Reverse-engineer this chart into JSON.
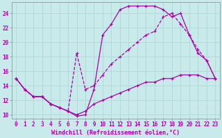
{
  "xlabel": "Windchill (Refroidissement éolien,°C)",
  "xlim": [
    -0.5,
    23.5
  ],
  "ylim": [
    9.5,
    25.5
  ],
  "xticks": [
    0,
    1,
    2,
    3,
    4,
    5,
    6,
    7,
    8,
    9,
    10,
    11,
    12,
    13,
    14,
    15,
    16,
    17,
    18,
    19,
    20,
    21,
    22,
    23
  ],
  "yticks": [
    10,
    12,
    14,
    16,
    18,
    20,
    22,
    24
  ],
  "background_color": "#c8eaea",
  "line_color": "#aa00aa",
  "grid_color": "#b0d8d8",
  "line1_x": [
    0,
    1,
    2,
    3,
    4,
    5,
    6,
    7,
    8,
    9,
    10,
    11,
    12,
    13,
    14,
    15,
    16,
    17,
    18,
    19,
    20,
    21,
    22,
    23
  ],
  "line1_y": [
    15,
    13.5,
    12.5,
    12.5,
    11.5,
    11.0,
    10.5,
    9.8,
    10.0,
    13.5,
    21.0,
    22.5,
    24.5,
    25.0,
    25.0,
    25.0,
    25.0,
    24.5,
    23.5,
    24.0,
    21.0,
    18.5,
    17.5,
    15.0
  ],
  "line2_x": [
    0,
    1,
    2,
    3,
    4,
    5,
    6,
    7,
    8,
    9,
    10,
    11,
    12,
    13,
    14,
    15,
    16,
    17,
    18,
    19,
    20,
    21,
    22,
    23
  ],
  "line2_y": [
    15,
    13.5,
    12.5,
    12.5,
    11.5,
    11.0,
    10.5,
    18.5,
    13.5,
    14.0,
    15.5,
    17.0,
    18.0,
    19.0,
    20.0,
    21.0,
    21.5,
    23.5,
    24.0,
    22.5,
    21.0,
    19.0,
    17.5,
    15.0
  ],
  "line3_x": [
    0,
    1,
    2,
    3,
    4,
    5,
    6,
    7,
    8,
    9,
    10,
    11,
    12,
    13,
    14,
    15,
    16,
    17,
    18,
    19,
    20,
    21,
    22,
    23
  ],
  "line3_y": [
    15,
    13.5,
    12.5,
    12.5,
    11.5,
    11.0,
    10.5,
    10.0,
    10.5,
    11.5,
    12.0,
    12.5,
    13.0,
    13.5,
    14.0,
    14.5,
    14.5,
    15.0,
    15.0,
    15.5,
    15.5,
    15.5,
    15.0,
    15.0
  ],
  "tick_fontsize": 5.5,
  "xlabel_fontsize": 6.0
}
